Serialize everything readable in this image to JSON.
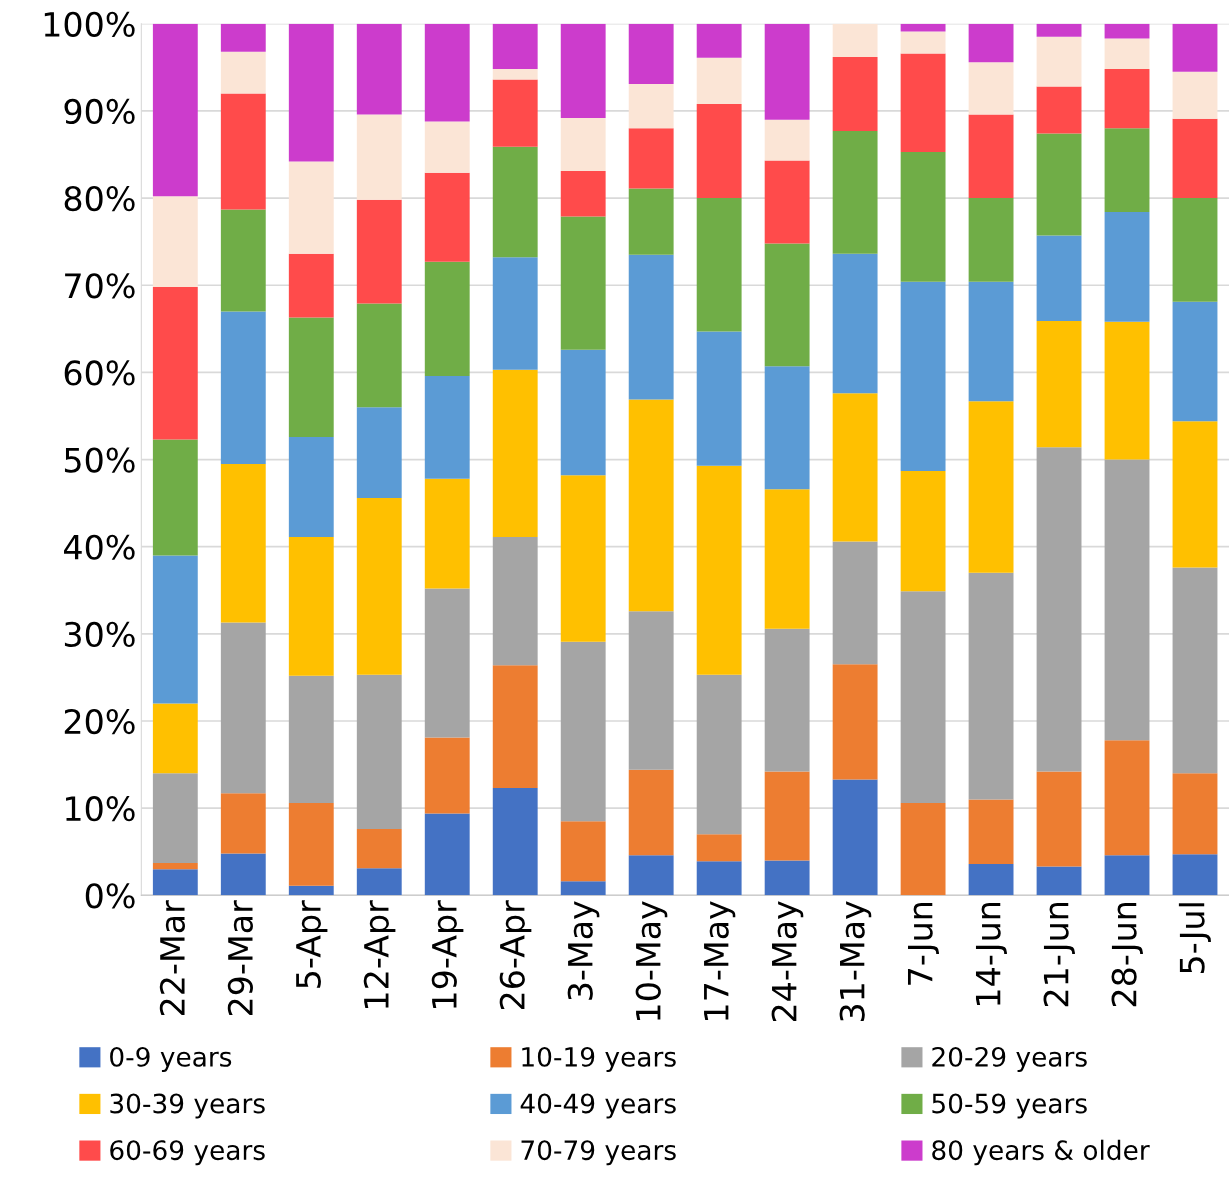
{
  "chart_data": {
    "type": "bar",
    "stacked": true,
    "categories": [
      "22-Mar",
      "29-Mar",
      "5-Apr",
      "12-Apr",
      "19-Apr",
      "26-Apr",
      "3-May",
      "10-May",
      "17-May",
      "24-May",
      "31-May",
      "7-Jun",
      "14-Jun",
      "21-Jun",
      "28-Jun",
      "5-Jul"
    ],
    "series": [
      {
        "name": "0-9 years",
        "color": "#4472c4",
        "values": [
          3.0,
          4.8,
          1.1,
          3.1,
          9.4,
          12.3,
          1.6,
          4.6,
          3.9,
          4.0,
          13.3,
          0,
          3.6,
          3.3,
          4.6,
          4.7
        ]
      },
      {
        "name": "10-19 years",
        "color": "#ed7d31",
        "values": [
          0.7,
          6.9,
          9.5,
          4.5,
          8.7,
          14.1,
          6.9,
          9.8,
          3.1,
          10.2,
          13.2,
          10.6,
          7.4,
          10.9,
          13.2,
          9.3
        ]
      },
      {
        "name": "20-29 years",
        "color": "#a5a5a5",
        "values": [
          10.3,
          19.6,
          14.6,
          17.7,
          17.1,
          14.7,
          20.6,
          18.2,
          18.3,
          16.4,
          14.1,
          24.3,
          26.0,
          37.2,
          32.2,
          23.6
        ]
      },
      {
        "name": "30-39 years",
        "color": "#ffc000",
        "values": [
          8.0,
          18.2,
          15.9,
          20.3,
          12.6,
          19.2,
          19.1,
          24.3,
          24.0,
          16.0,
          17.0,
          13.8,
          19.7,
          14.5,
          15.8,
          16.8
        ]
      },
      {
        "name": "40-49 years",
        "color": "#5b9bd5",
        "values": [
          17.0,
          17.5,
          11.5,
          10.4,
          11.8,
          12.9,
          14.4,
          16.6,
          15.4,
          14.1,
          16.0,
          21.7,
          13.7,
          9.8,
          12.6,
          13.7
        ]
      },
      {
        "name": "50-59 years",
        "color": "#70ad47",
        "values": [
          13.3,
          11.7,
          13.7,
          11.9,
          13.1,
          12.7,
          15.3,
          7.6,
          15.3,
          14.1,
          14.1,
          14.9,
          9.6,
          11.7,
          9.6,
          11.9
        ]
      },
      {
        "name": "60-69 years",
        "color": "#ff4b4b",
        "values": [
          17.5,
          13.3,
          7.3,
          11.9,
          10.2,
          7.7,
          5.2,
          6.9,
          10.8,
          9.5,
          8.5,
          11.3,
          9.6,
          5.4,
          6.8,
          9.1
        ]
      },
      {
        "name": "70-79 years",
        "color": "#fbe5d6",
        "values": [
          10.4,
          4.8,
          10.6,
          9.8,
          5.9,
          1.2,
          6.1,
          5.1,
          5.3,
          4.7,
          3.8,
          2.5,
          6.0,
          5.7,
          3.5,
          5.4
        ]
      },
      {
        "name": "80 years & older",
        "color": "#cc3ccc",
        "values": [
          19.8,
          3.2,
          15.8,
          10.4,
          11.2,
          5.2,
          10.8,
          6.9,
          3.9,
          11.0,
          0,
          0.9,
          4.4,
          1.5,
          1.7,
          5.5
        ]
      }
    ],
    "ylim": [
      0,
      100
    ],
    "yticks": [
      {
        "value": 0,
        "label": "0%"
      },
      {
        "value": 10,
        "label": "10%"
      },
      {
        "value": 20,
        "label": "20%"
      },
      {
        "value": 30,
        "label": "30%"
      },
      {
        "value": 40,
        "label": "40%"
      },
      {
        "value": 50,
        "label": "50%"
      },
      {
        "value": 60,
        "label": "60%"
      },
      {
        "value": 70,
        "label": "70%"
      },
      {
        "value": 80,
        "label": "80%"
      },
      {
        "value": 90,
        "label": "90%"
      },
      {
        "value": 100,
        "label": "100%"
      }
    ],
    "grid": "y",
    "legend": "bottom"
  }
}
